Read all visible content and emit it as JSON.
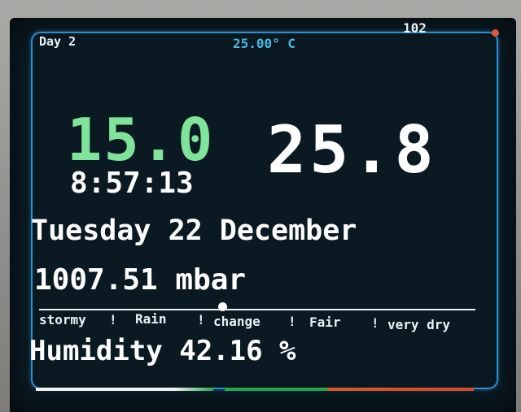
{
  "header": {
    "counter": "102",
    "day_label": "Day 2",
    "set_temperature": "25.00° C"
  },
  "readings": {
    "indoor_temp": "15.0",
    "outdoor_temp": "25.8",
    "time": "8:57:13",
    "date": "Tuesday 22 December",
    "pressure": "1007.51 mbar",
    "humidity": "Humidity 42.16 %"
  },
  "barometer_scale": {
    "labels": [
      "stormy",
      "Rain",
      "change",
      "Fair",
      "very dry"
    ],
    "separator": "!",
    "marker_position_fraction": 0.42
  },
  "colors": {
    "frame": "#2a8fd0",
    "indoor_temp": "#7fe39a",
    "set_temperature": "#4ab8e6",
    "bar_white": "#f2f2f0",
    "bar_green": "#2ea24e",
    "bar_orange": "#d85a2a"
  }
}
